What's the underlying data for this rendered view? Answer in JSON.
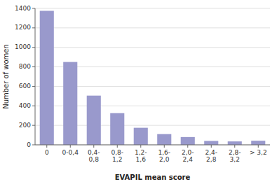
{
  "chart_data": {
    "type": "bar",
    "categories": [
      "0",
      "0-0,4",
      "0,4-\n0,8",
      "0,8-\n1,2",
      "1,2-\n1,6",
      "1,6-\n2,0",
      "2,0-\n2,4",
      "2,4-\n2,8",
      "2,8-\n3,2",
      "> 3,2"
    ],
    "values": [
      1375,
      850,
      505,
      325,
      175,
      110,
      80,
      40,
      35,
      42
    ],
    "color": "#9999cc",
    "xlabel": "EVAPIL mean score",
    "ylabel": "Number of women",
    "ylim": [
      0,
      1400
    ],
    "yticks": [
      0,
      200,
      400,
      600,
      800,
      1000,
      1200,
      1400
    ],
    "grid": true
  }
}
